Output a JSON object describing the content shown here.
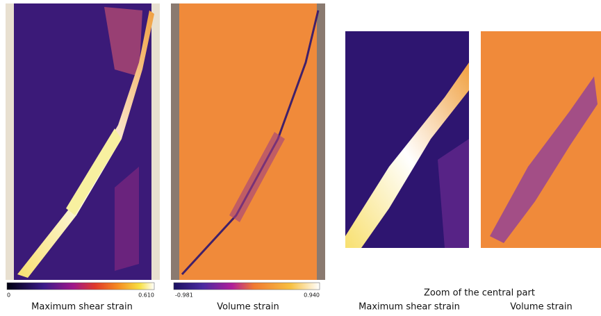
{
  "panels": [
    {
      "colorbar": {
        "min": "0",
        "max": "0.610"
      },
      "caption": "Maximum shear strain"
    },
    {
      "colorbar": {
        "min": "-0.981",
        "max": "0.940"
      },
      "caption": "Volume strain"
    }
  ],
  "zoom": {
    "title": "Zoom of the central part",
    "captions": [
      "Maximum shear strain",
      "Volume strain"
    ]
  }
}
